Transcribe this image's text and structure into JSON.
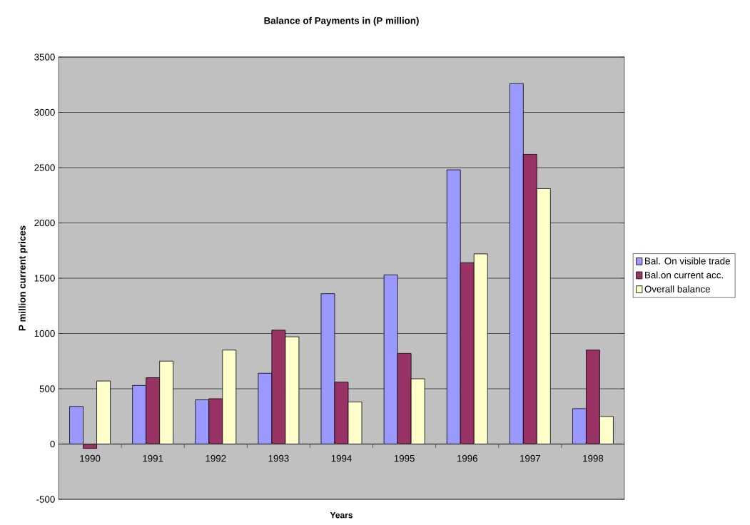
{
  "chart_data": {
    "type": "bar",
    "title": "Balance of Payments in (P million)",
    "xlabel": "Years",
    "ylabel": "P million current prices",
    "categories": [
      "1990",
      "1991",
      "1992",
      "1993",
      "1994",
      "1995",
      "1996",
      "1997",
      "1998"
    ],
    "series": [
      {
        "name": "Bal. On visible trade",
        "color": "#9999ff",
        "values": [
          340,
          530,
          400,
          640,
          1360,
          1530,
          2480,
          3260,
          320
        ]
      },
      {
        "name": "Bal.on current acc.",
        "color": "#993366",
        "values": [
          -40,
          600,
          410,
          1030,
          560,
          820,
          1640,
          2620,
          850
        ]
      },
      {
        "name": "Overall balance",
        "color": "#ffffcc",
        "values": [
          570,
          750,
          850,
          970,
          380,
          590,
          1720,
          2310,
          250
        ]
      }
    ],
    "ylim": [
      -500,
      3500
    ],
    "yticks": [
      -500,
      0,
      500,
      1000,
      1500,
      2000,
      2500,
      3000,
      3500
    ],
    "grid": "y",
    "legend": "right"
  }
}
